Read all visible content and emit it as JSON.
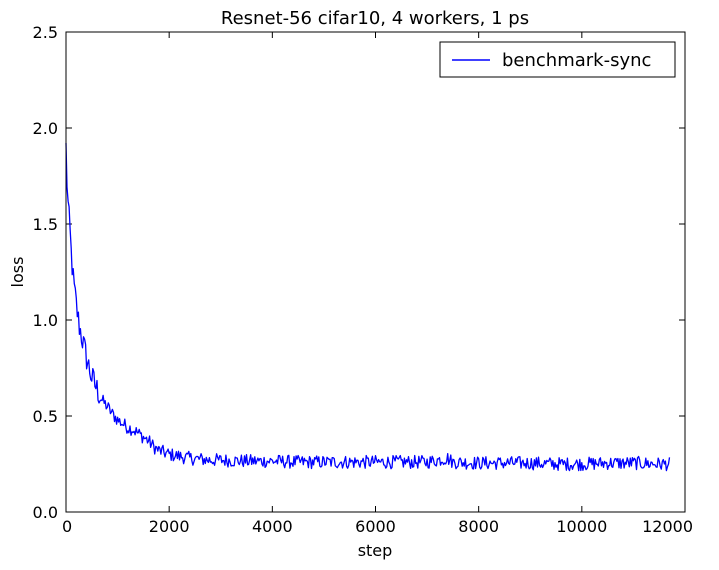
{
  "chart_data": {
    "type": "line",
    "title": "Resnet-56 cifar10, 4 workers, 1 ps",
    "xlabel": "step",
    "ylabel": "loss",
    "xlim": [
      0,
      12000
    ],
    "ylim": [
      0,
      2.5
    ],
    "xticks": [
      0,
      2000,
      4000,
      6000,
      8000,
      10000,
      12000
    ],
    "xtick_labels": [
      "0",
      "2000",
      "4000",
      "6000",
      "8000",
      "10000",
      "12000"
    ],
    "yticks": [
      0,
      0.5,
      1.0,
      1.5,
      2.0,
      2.5
    ],
    "ytick_labels": [
      "0.0",
      "0.5",
      "1.0",
      "1.5",
      "2.0",
      "2.5"
    ],
    "grid": false,
    "legend": {
      "position": "top-right"
    },
    "series": [
      {
        "name": "benchmark-sync",
        "color": "#0000ff",
        "x": [
          0,
          20,
          40,
          60,
          80,
          100,
          150,
          200,
          250,
          300,
          400,
          500,
          600,
          700,
          800,
          900,
          1000,
          1100,
          1200,
          1300,
          1400,
          1500,
          1600,
          1700,
          1800,
          1900,
          2000,
          2200,
          2400,
          2600,
          2800,
          3000,
          3500,
          4000,
          4500,
          5000,
          5500,
          6000,
          6500,
          7000,
          7400,
          7500,
          8000,
          8500,
          9000,
          9500,
          10000,
          10500,
          11000,
          11500,
          11700
        ],
        "y": [
          1.9,
          1.72,
          1.6,
          1.52,
          1.45,
          1.35,
          1.18,
          1.08,
          0.98,
          0.92,
          0.8,
          0.7,
          0.64,
          0.58,
          0.55,
          0.51,
          0.48,
          0.46,
          0.44,
          0.43,
          0.41,
          0.39,
          0.37,
          0.34,
          0.32,
          0.31,
          0.3,
          0.29,
          0.28,
          0.275,
          0.27,
          0.27,
          0.265,
          0.265,
          0.26,
          0.26,
          0.26,
          0.26,
          0.26,
          0.26,
          0.28,
          0.26,
          0.255,
          0.255,
          0.255,
          0.25,
          0.25,
          0.255,
          0.255,
          0.25,
          0.25
        ]
      }
    ]
  }
}
